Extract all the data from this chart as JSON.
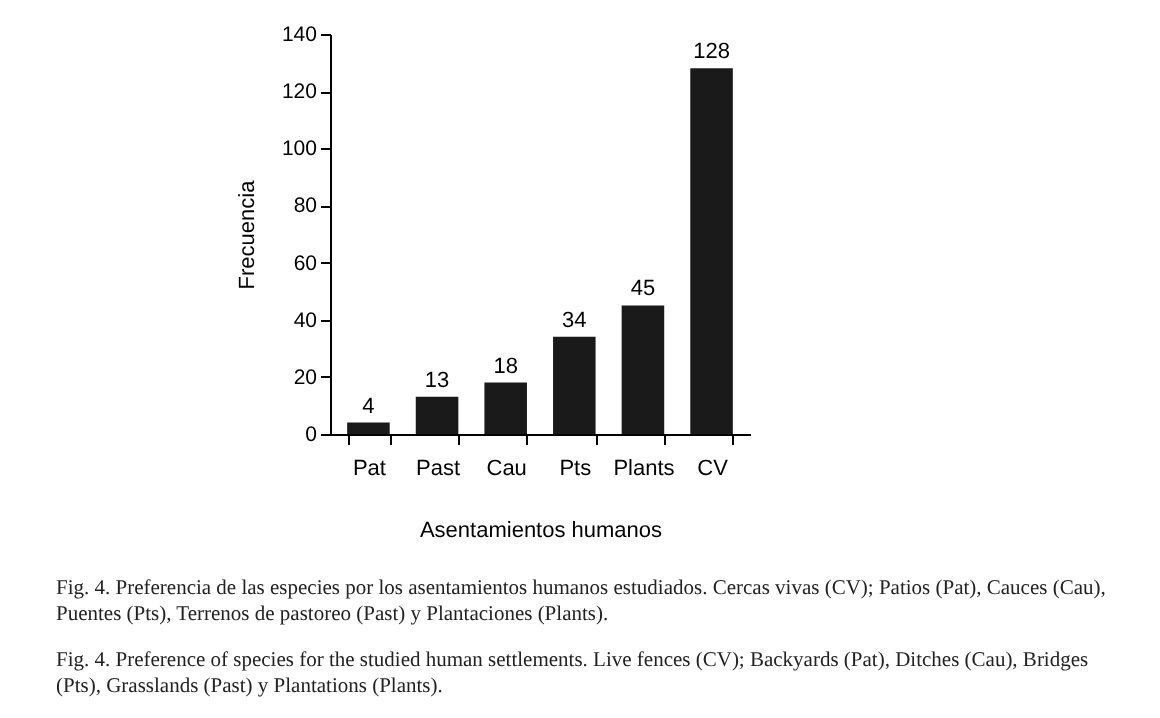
{
  "chart_data": {
    "type": "bar",
    "xlabel": "Asentamientos humanos",
    "ylabel": "Frecuencia",
    "categories": [
      "Pat",
      "Past",
      "Cau",
      "Pts",
      "Plants",
      "CV"
    ],
    "values": [
      4,
      13,
      18,
      34,
      45,
      128
    ],
    "color": "#1a1a1a",
    "ylim": [
      0,
      140
    ],
    "yticks": [
      0,
      20,
      40,
      60,
      80,
      100,
      120,
      140
    ],
    "grid": false,
    "data_labels": true,
    "annotations": [
      "Fig. 4. Preferencia de las especies por los asentamientos humanos estudiados. Cercas vivas (CV); Patios (Pat), Cauces (Cau), Puentes (Pts), Terrenos de pastoreo (Past) y Plantaciones (Plants).",
      "Fig. 4. Preference of species for the studied human settlements. Live fences (CV); Backyards (Pat), Ditches (Cau), Bridges (Pts), Grasslands (Past) y Plantations (Plants)."
    ]
  }
}
